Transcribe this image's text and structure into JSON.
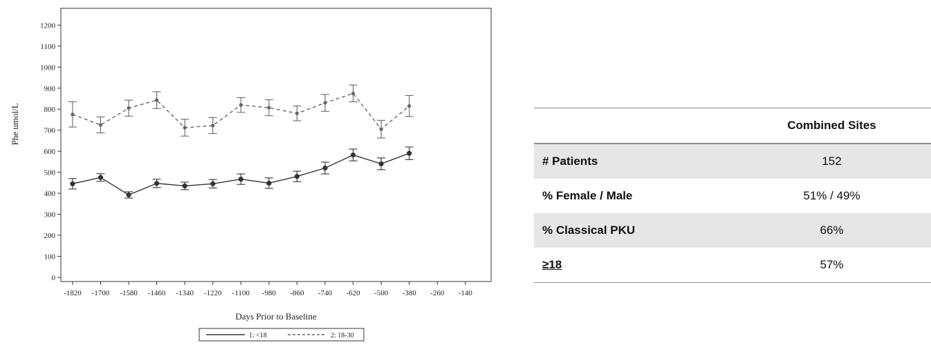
{
  "chart_data": {
    "type": "line",
    "xlabel": "Days Prior to Baseline",
    "ylabel": "Phe umol/L",
    "x_ticks": [
      -1820,
      -1700,
      -1580,
      -1460,
      -1340,
      -1220,
      -1100,
      -980,
      -860,
      -740,
      -620,
      -500,
      -380,
      -260,
      -140
    ],
    "y_ticks": [
      0,
      100,
      200,
      300,
      400,
      500,
      600,
      700,
      800,
      900,
      1000,
      1100,
      1200
    ],
    "xlim": [
      -1870,
      -30
    ],
    "ylim": [
      -20,
      1280
    ],
    "grid": false,
    "legend_position": "bottom-center",
    "x": [
      -1820,
      -1700,
      -1580,
      -1460,
      -1340,
      -1220,
      -1100,
      -980,
      -860,
      -740,
      -620,
      -500,
      -380,
      -260,
      -140
    ],
    "series": [
      {
        "name": "1: <18",
        "line_style": "solid",
        "color": "#333333",
        "values": [
          445,
          475,
          392,
          447,
          435,
          445,
          467,
          448,
          480,
          520,
          582,
          540,
          590
        ],
        "x": [
          -1820,
          -1700,
          -1580,
          -1460,
          -1340,
          -1220,
          -1100,
          -980,
          -860,
          -740,
          -620,
          -500,
          -380
        ],
        "error": [
          25,
          18,
          15,
          20,
          18,
          20,
          25,
          25,
          25,
          28,
          28,
          28,
          30
        ]
      },
      {
        "name": "2: 18-30",
        "line_style": "dashed",
        "color": "#666666",
        "values": [
          775,
          725,
          805,
          843,
          712,
          722,
          820,
          807,
          780,
          830,
          875,
          705,
          815
        ],
        "x": [
          -1820,
          -1700,
          -1580,
          -1460,
          -1340,
          -1220,
          -1100,
          -980,
          -860,
          -740,
          -620,
          -500,
          -380
        ],
        "error": [
          60,
          38,
          38,
          40,
          40,
          38,
          35,
          38,
          35,
          40,
          40,
          42,
          50
        ]
      }
    ]
  },
  "table": {
    "header": [
      "",
      "Combined Sites"
    ],
    "rows": [
      {
        "label": "# Patients",
        "value": "152"
      },
      {
        "label": "% Female / Male",
        "value": "51% / 49%"
      },
      {
        "label": "% Classical PKU",
        "value": "66%"
      },
      {
        "label": "≥18",
        "value": "57%"
      }
    ]
  }
}
